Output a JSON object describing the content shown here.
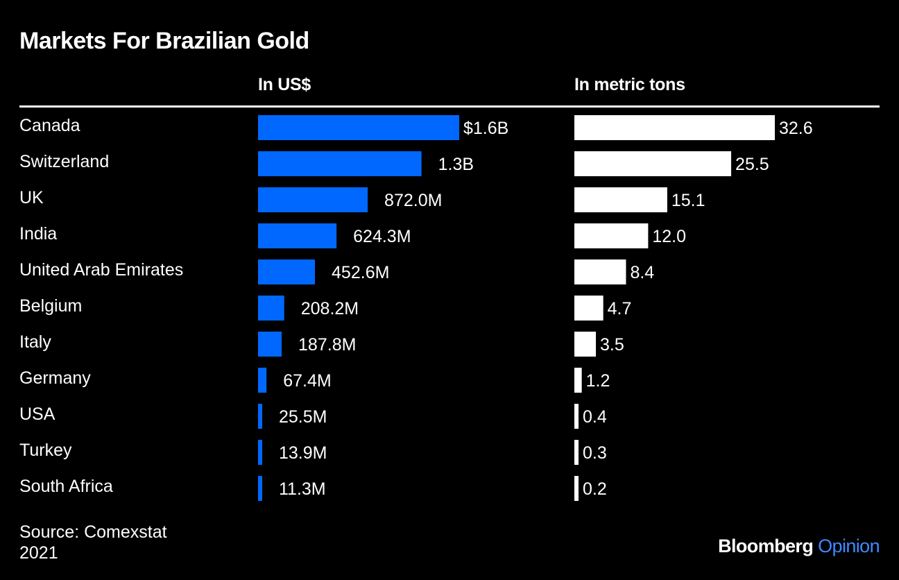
{
  "header": {
    "title": "Markets For Brazilian Gold",
    "col_usd": "In US$",
    "col_tons": "In metric tons"
  },
  "footer": {
    "source_line1": "Source: Comexstat",
    "source_line2": "2021",
    "brand_name": "Bloomberg",
    "brand_suffix": "Opinion"
  },
  "colors": {
    "background": "#000000",
    "usd_bar": "#0068ff",
    "tons_bar": "#ffffff",
    "text": "#ffffff",
    "brand_accent": "#3d8bff"
  },
  "chart_data": {
    "type": "bar",
    "orientation": "horizontal",
    "title": "Markets For Brazilian Gold",
    "categories": [
      "Canada",
      "Switzerland",
      "UK",
      "India",
      "United Arab Emirates",
      "Belgium",
      "Italy",
      "Germany",
      "USA",
      "Turkey",
      "South Africa"
    ],
    "series": [
      {
        "name": "In US$",
        "unit": "USD millions",
        "values": [
          1600,
          1300,
          872.0,
          624.3,
          452.6,
          208.2,
          187.8,
          67.4,
          25.5,
          13.9,
          11.3
        ],
        "labels": [
          "$1.6B",
          "1.3B",
          "872.0M",
          "624.3M",
          "452.6M",
          "208.2M",
          "187.8M",
          "67.4M",
          "25.5M",
          "13.9M",
          "11.3M"
        ],
        "xlim": [
          0,
          1600
        ]
      },
      {
        "name": "In metric tons",
        "unit": "metric tons",
        "values": [
          32.6,
          25.5,
          15.1,
          12.0,
          8.4,
          4.7,
          3.5,
          1.2,
          0.4,
          0.3,
          0.2
        ],
        "labels": [
          "32.6",
          "25.5",
          "15.1",
          "12.0",
          "8.4",
          "4.7",
          "3.5",
          "1.2",
          "0.4",
          "0.3",
          "0.2"
        ],
        "xlim": [
          0,
          32.6
        ]
      }
    ],
    "grid": false,
    "legend": "column-headers"
  }
}
